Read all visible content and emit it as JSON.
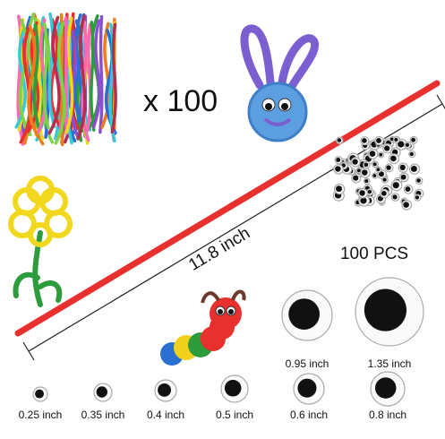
{
  "header": {
    "count": "x 100",
    "length": "11.8 inch",
    "eyes_count": "100 PCS"
  },
  "eye_sizes": {
    "large": [
      "0.95 inch",
      "1.35 inch"
    ],
    "small": [
      "0.25 inch",
      "0.35 inch",
      "0.4 inch",
      "0.5 inch",
      "0.6 inch",
      "0.8 inch"
    ]
  }
}
